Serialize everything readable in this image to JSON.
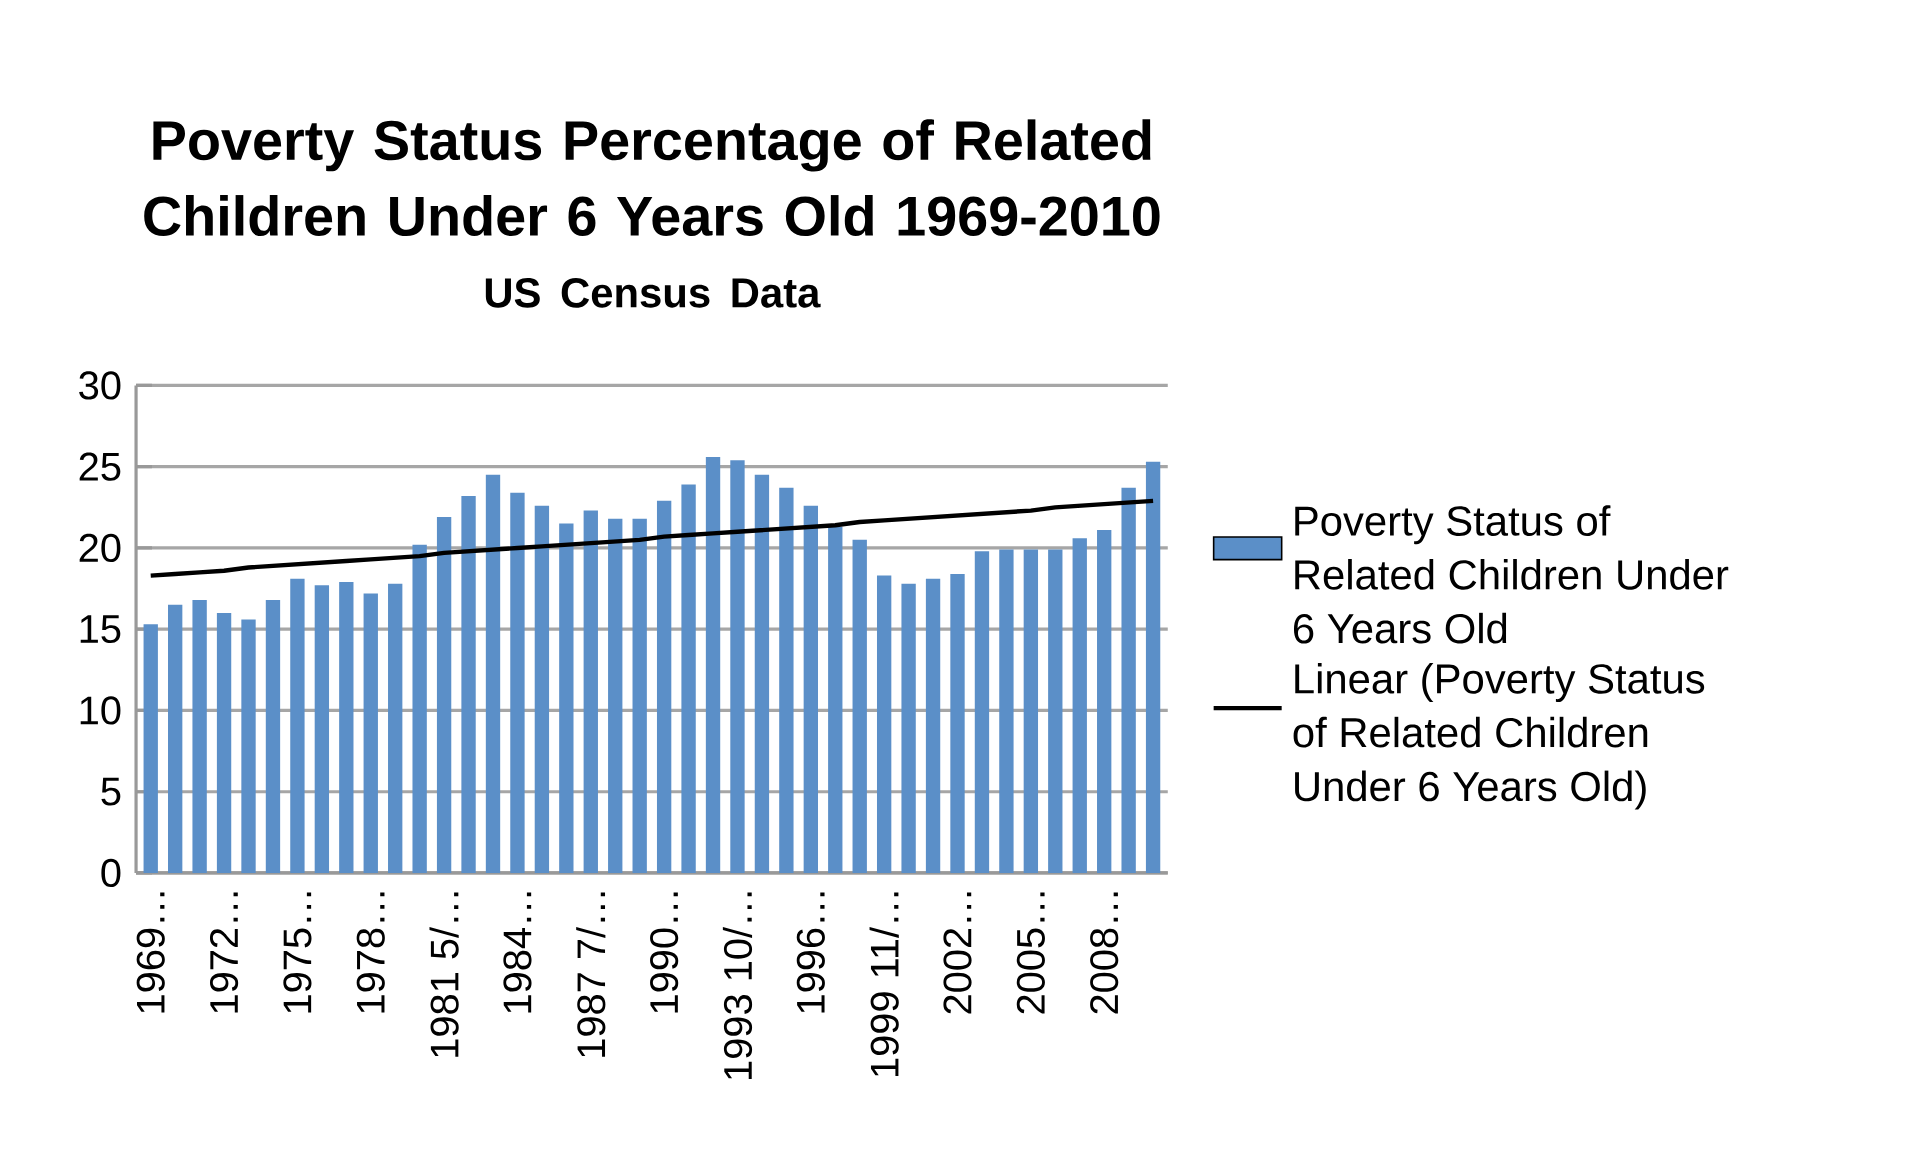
{
  "chart_data": {
    "type": "bar",
    "title": "Poverty Status Percentage of Related Children Under 6 Years Old 1969-2010",
    "subtitle": "US Census Data",
    "categories": [
      "1969…",
      null,
      null,
      "1972…",
      null,
      null,
      "1975…",
      null,
      null,
      "1978…",
      null,
      null,
      "1981 5/…",
      null,
      null,
      "1984…",
      null,
      null,
      "1987 7/…",
      null,
      null,
      "1990…",
      null,
      null,
      "1993 10/…",
      null,
      null,
      "1996…",
      null,
      null,
      "1999 11/…",
      null,
      null,
      "2002…",
      null,
      null,
      "2005…",
      null,
      null,
      "2008…",
      null,
      null
    ],
    "series": [
      {
        "name": "Poverty Status of Related Children Under 6 Years Old",
        "color": "#5b8fc8",
        "values": [
          15.3,
          16.5,
          16.8,
          16.0,
          15.6,
          16.8,
          18.1,
          17.7,
          17.9,
          17.2,
          17.8,
          20.2,
          21.9,
          23.2,
          24.5,
          23.4,
          22.6,
          21.5,
          22.3,
          21.8,
          21.8,
          22.9,
          23.9,
          25.6,
          25.4,
          24.5,
          23.7,
          22.6,
          21.3,
          20.5,
          18.3,
          17.8,
          18.1,
          18.4,
          19.8,
          19.9,
          19.9,
          19.9,
          20.6,
          21.1,
          23.7,
          25.3
        ]
      },
      {
        "name": "Linear (Poverty Status of Related Children Under 6 Years Old)",
        "type": "line",
        "color": "#000000",
        "values": [
          18.3,
          18.4,
          18.5,
          18.6,
          18.8,
          18.9,
          19.0,
          19.1,
          19.2,
          19.3,
          19.4,
          19.5,
          19.7,
          19.8,
          19.9,
          20.0,
          20.1,
          20.2,
          20.3,
          20.4,
          20.5,
          20.7,
          20.8,
          20.9,
          21.0,
          21.1,
          21.2,
          21.3,
          21.4,
          21.6,
          21.7,
          21.8,
          21.9,
          22.0,
          22.1,
          22.2,
          22.3,
          22.5,
          22.6,
          22.7,
          22.8,
          22.9
        ]
      }
    ],
    "ylim": [
      0,
      30
    ],
    "yticks": [
      0,
      5,
      10,
      15,
      20,
      25,
      30
    ],
    "grid": "y",
    "legend": "right"
  }
}
